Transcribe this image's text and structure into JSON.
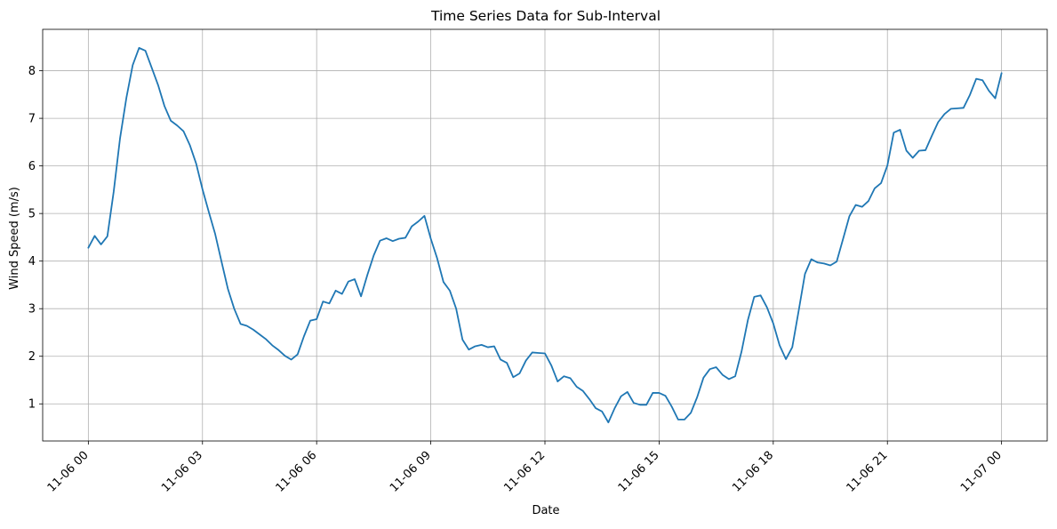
{
  "chart_data": {
    "type": "line",
    "title": "Time Series Data for Sub-Interval",
    "xlabel": "Date",
    "ylabel": "Wind Speed (m/s)",
    "grid": true,
    "colors": {
      "series": "#1f77b4",
      "grid": "#b0b0b0",
      "axis": "#000000"
    },
    "x_start": "2023-11-06 00:00",
    "x_step_minutes": 10,
    "xlim": [
      "2023-11-05 22:48",
      "2023-11-07 01:12"
    ],
    "ylim": [
      0.22,
      8.87
    ],
    "x_ticks": [
      {
        "label": "11-06 00",
        "value": 0
      },
      {
        "label": "11-06 03",
        "value": 3
      },
      {
        "label": "11-06 06",
        "value": 6
      },
      {
        "label": "11-06 09",
        "value": 9
      },
      {
        "label": "11-06 12",
        "value": 12
      },
      {
        "label": "11-06 15",
        "value": 15
      },
      {
        "label": "11-06 18",
        "value": 18
      },
      {
        "label": "11-06 21",
        "value": 21
      },
      {
        "label": "11-07 00",
        "value": 24
      }
    ],
    "y_ticks": [
      {
        "label": "1",
        "value": 1
      },
      {
        "label": "2",
        "value": 2
      },
      {
        "label": "3",
        "value": 3
      },
      {
        "label": "4",
        "value": 4
      },
      {
        "label": "5",
        "value": 5
      },
      {
        "label": "6",
        "value": 6
      },
      {
        "label": "7",
        "value": 7
      },
      {
        "label": "8",
        "value": 8
      }
    ],
    "series": [
      {
        "values": [
          4.28,
          4.53,
          4.35,
          4.52,
          5.46,
          6.58,
          7.43,
          8.12,
          8.48,
          8.42,
          8.06,
          7.7,
          7.26,
          6.95,
          6.85,
          6.73,
          6.44,
          6.05,
          5.51,
          5.03,
          4.57,
          3.99,
          3.42,
          3.0,
          2.68,
          2.64,
          2.56,
          2.46,
          2.36,
          2.23,
          2.13,
          2.01,
          1.93,
          2.04,
          2.42,
          2.75,
          2.78,
          3.15,
          3.11,
          3.38,
          3.31,
          3.57,
          3.62,
          3.26,
          3.71,
          4.12,
          4.43,
          4.48,
          4.42,
          4.47,
          4.49,
          4.73,
          4.83,
          4.95,
          4.47,
          4.06,
          3.56,
          3.38,
          3.0,
          2.35,
          2.14,
          2.21,
          2.24,
          2.19,
          2.21,
          1.93,
          1.86,
          1.56,
          1.64,
          1.91,
          2.08,
          2.07,
          2.06,
          1.81,
          1.47,
          1.58,
          1.54,
          1.36,
          1.27,
          1.1,
          0.91,
          0.84,
          0.61,
          0.91,
          1.16,
          1.25,
          1.02,
          0.98,
          0.98,
          1.23,
          1.23,
          1.17,
          0.94,
          0.67,
          0.67,
          0.81,
          1.14,
          1.55,
          1.73,
          1.77,
          1.61,
          1.52,
          1.58,
          2.1,
          2.76,
          3.25,
          3.28,
          3.03,
          2.69,
          2.23,
          1.94,
          2.19,
          2.95,
          3.73,
          4.04,
          3.97,
          3.95,
          3.91,
          3.99,
          4.46,
          4.94,
          5.18,
          5.14,
          5.26,
          5.53,
          5.64,
          6.01,
          6.7,
          6.76,
          6.32,
          6.17,
          6.32,
          6.33,
          6.63,
          6.92,
          7.09,
          7.2,
          7.21,
          7.22,
          7.49,
          7.83,
          7.8,
          7.58,
          7.42,
          7.95
        ]
      }
    ]
  }
}
